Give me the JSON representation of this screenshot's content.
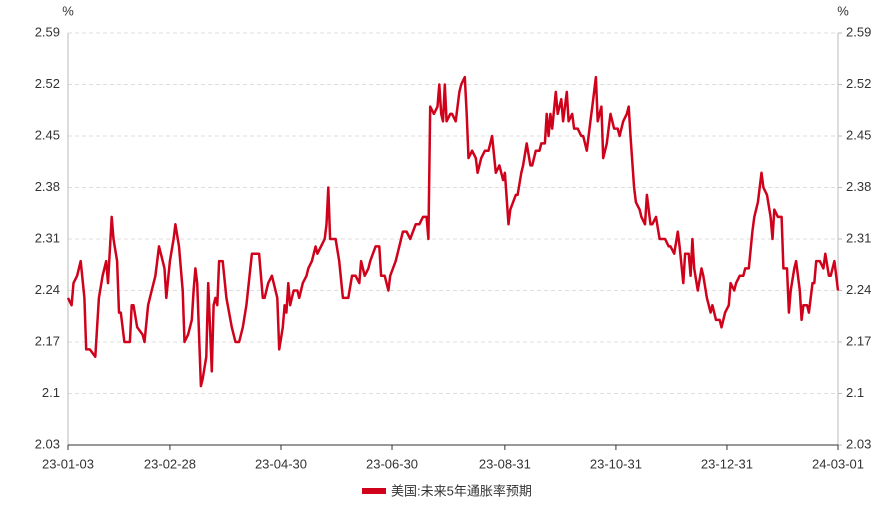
{
  "chart_data": {
    "type": "line",
    "ylabel": "%",
    "y2label": "%",
    "ylim": [
      2.03,
      2.59
    ],
    "yticks": [
      2.03,
      2.1,
      2.17,
      2.24,
      2.31,
      2.38,
      2.45,
      2.52,
      2.59
    ],
    "y2lim": [
      2.03,
      2.59
    ],
    "y2ticks": [
      2.03,
      2.1,
      2.17,
      2.24,
      2.31,
      2.38,
      2.45,
      2.52,
      2.59
    ],
    "xlim": [
      "23-01-03",
      "24-03-01"
    ],
    "xticks": [
      "23-01-03",
      "23-02-28",
      "23-04-30",
      "23-06-30",
      "23-08-31",
      "23-10-31",
      "23-12-31",
      "24-03-01"
    ],
    "grid": true,
    "legend": "bottom",
    "x": [
      "23-01-03",
      "23-01-05",
      "23-01-06",
      "23-01-08",
      "23-01-10",
      "23-01-12",
      "23-01-13",
      "23-01-15",
      "23-01-18",
      "23-01-20",
      "23-01-22",
      "23-01-24",
      "23-01-25",
      "23-01-27",
      "23-01-28",
      "23-01-30",
      "23-01-31",
      "23-02-01",
      "23-02-03",
      "23-02-06",
      "23-02-07",
      "23-02-08",
      "23-02-10",
      "23-02-13",
      "23-02-14",
      "23-02-16",
      "23-02-18",
      "23-02-20",
      "23-02-22",
      "23-02-24",
      "23-02-25",
      "23-02-26",
      "23-02-28",
      "23-03-02",
      "23-03-03",
      "23-03-05",
      "23-03-07",
      "23-03-08",
      "23-03-10",
      "23-03-12",
      "23-03-13",
      "23-03-14",
      "23-03-15",
      "23-03-17",
      "23-03-18",
      "23-03-20",
      "23-03-21",
      "23-03-23",
      "23-03-24",
      "23-03-25",
      "23-03-26",
      "23-03-27",
      "23-03-29",
      "23-03-31",
      "23-04-03",
      "23-04-05",
      "23-04-07",
      "23-04-09",
      "23-04-11",
      "23-04-14",
      "23-04-16",
      "23-04-18",
      "23-04-20",
      "23-04-21",
      "23-04-23",
      "23-04-25",
      "23-04-26",
      "23-04-28",
      "23-04-29",
      "23-05-01",
      "23-05-02",
      "23-05-03",
      "23-05-04",
      "23-05-05",
      "23-05-07",
      "23-05-09",
      "23-05-10",
      "23-05-12",
      "23-05-14",
      "23-05-15",
      "23-05-17",
      "23-05-19",
      "23-05-20",
      "23-05-22",
      "23-05-24",
      "23-05-25",
      "23-05-26",
      "23-05-27",
      "23-05-30",
      "23-06-01",
      "23-06-03",
      "23-06-05",
      "23-06-06",
      "23-06-08",
      "23-06-10",
      "23-06-12",
      "23-06-13",
      "23-06-15",
      "23-06-17",
      "23-06-18",
      "23-06-21",
      "23-06-23",
      "23-06-24",
      "23-06-26",
      "23-06-28",
      "23-06-29",
      "23-07-02",
      "23-07-04",
      "23-07-06",
      "23-07-08",
      "23-07-10",
      "23-07-13",
      "23-07-15",
      "23-07-17",
      "23-07-19",
      "23-07-20",
      "23-07-21",
      "23-07-23",
      "23-07-25",
      "23-07-26",
      "23-07-27",
      "23-07-28",
      "23-07-29",
      "23-07-30",
      "23-08-01",
      "23-08-02",
      "23-08-04",
      "23-08-06",
      "23-08-07",
      "23-08-09",
      "23-08-10",
      "23-08-11",
      "23-08-13",
      "23-08-15",
      "23-08-16",
      "23-08-18",
      "23-08-20",
      "23-08-22",
      "23-08-24",
      "23-08-26",
      "23-08-28",
      "23-08-30",
      "23-08-31",
      "23-09-02",
      "23-09-03",
      "23-09-06",
      "23-09-07",
      "23-09-09",
      "23-09-10",
      "23-09-12",
      "23-09-14",
      "23-09-15",
      "23-09-17",
      "23-09-19",
      "23-09-20",
      "23-09-22",
      "23-09-23",
      "23-09-24",
      "23-09-25",
      "23-09-26",
      "23-09-28",
      "23-09-29",
      "23-10-01",
      "23-10-02",
      "23-10-04",
      "23-10-05",
      "23-10-07",
      "23-10-08",
      "23-10-10",
      "23-10-12",
      "23-10-13",
      "23-10-15",
      "23-10-17",
      "23-10-18",
      "23-10-20",
      "23-10-21",
      "23-10-23",
      "23-10-24",
      "23-10-26",
      "23-10-27",
      "23-10-28",
      "23-10-30",
      "23-11-01",
      "23-11-02",
      "23-11-04",
      "23-11-06",
      "23-11-07",
      "23-11-08",
      "23-11-10",
      "23-11-11",
      "23-11-13",
      "23-11-14",
      "23-11-16",
      "23-11-17",
      "23-11-19",
      "23-11-20",
      "23-11-22",
      "23-11-24",
      "23-11-25",
      "23-11-27",
      "23-11-29",
      "23-11-30",
      "23-12-02",
      "23-12-04",
      "23-12-05",
      "23-12-07",
      "23-12-08",
      "23-12-10",
      "23-12-11",
      "23-12-12",
      "23-12-13",
      "23-12-15",
      "23-12-17",
      "23-12-18",
      "23-12-20",
      "23-12-22",
      "23-12-23",
      "23-12-25",
      "23-12-27",
      "23-12-28",
      "23-12-30",
      "24-01-01",
      "24-01-02",
      "24-01-04",
      "24-01-05",
      "24-01-07",
      "24-01-09",
      "24-01-10",
      "24-01-12",
      "24-01-14",
      "24-01-15",
      "24-01-17",
      "24-01-19",
      "24-01-20",
      "24-01-22",
      "24-01-24",
      "24-01-25",
      "24-01-26",
      "24-01-28",
      "24-01-30",
      "24-01-31",
      "24-02-02",
      "24-02-03",
      "24-02-04",
      "24-02-06",
      "24-02-07",
      "24-02-09",
      "24-02-10",
      "24-02-11",
      "24-02-13",
      "24-02-14",
      "24-02-16",
      "24-02-17",
      "24-02-18",
      "24-02-20",
      "24-02-22",
      "24-02-23",
      "24-02-25",
      "24-02-26",
      "24-02-28",
      "24-03-01"
    ],
    "series": [
      {
        "name": "美国:未来5年通胀率预期",
        "color": "#d0021b",
        "values": [
          2.23,
          2.22,
          2.25,
          2.26,
          2.28,
          2.23,
          2.16,
          2.16,
          2.15,
          2.23,
          2.26,
          2.28,
          2.25,
          2.34,
          2.31,
          2.28,
          2.21,
          2.21,
          2.17,
          2.17,
          2.22,
          2.22,
          2.19,
          2.18,
          2.17,
          2.22,
          2.24,
          2.26,
          2.3,
          2.28,
          2.27,
          2.23,
          2.28,
          2.31,
          2.33,
          2.3,
          2.24,
          2.17,
          2.18,
          2.2,
          2.24,
          2.27,
          2.25,
          2.11,
          2.12,
          2.15,
          2.25,
          2.13,
          2.22,
          2.23,
          2.22,
          2.28,
          2.28,
          2.23,
          2.19,
          2.17,
          2.17,
          2.19,
          2.22,
          2.29,
          2.29,
          2.29,
          2.23,
          2.23,
          2.25,
          2.26,
          2.25,
          2.23,
          2.16,
          2.19,
          2.22,
          2.21,
          2.25,
          2.22,
          2.24,
          2.24,
          2.23,
          2.25,
          2.26,
          2.27,
          2.28,
          2.3,
          2.29,
          2.3,
          2.31,
          2.33,
          2.38,
          2.31,
          2.31,
          2.28,
          2.23,
          2.23,
          2.23,
          2.26,
          2.26,
          2.25,
          2.28,
          2.26,
          2.27,
          2.28,
          2.3,
          2.3,
          2.26,
          2.26,
          2.24,
          2.26,
          2.28,
          2.3,
          2.32,
          2.32,
          2.31,
          2.33,
          2.33,
          2.34,
          2.34,
          2.31,
          2.49,
          2.48,
          2.49,
          2.52,
          2.48,
          2.47,
          2.52,
          2.47,
          2.48,
          2.48,
          2.47,
          2.51,
          2.52,
          2.53,
          2.48,
          2.42,
          2.43,
          2.42,
          2.4,
          2.42,
          2.43,
          2.43,
          2.45,
          2.4,
          2.41,
          2.39,
          2.4,
          2.33,
          2.35,
          2.37,
          2.37,
          2.4,
          2.41,
          2.44,
          2.41,
          2.41,
          2.43,
          2.43,
          2.44,
          2.44,
          2.48,
          2.45,
          2.48,
          2.46,
          2.51,
          2.48,
          2.5,
          2.47,
          2.51,
          2.47,
          2.48,
          2.46,
          2.46,
          2.45,
          2.45,
          2.43,
          2.47,
          2.49,
          2.53,
          2.47,
          2.49,
          2.42,
          2.44,
          2.46,
          2.48,
          2.46,
          2.46,
          2.45,
          2.47,
          2.48,
          2.49,
          2.45,
          2.38,
          2.36,
          2.35,
          2.34,
          2.33,
          2.37,
          2.33,
          2.33,
          2.34,
          2.31,
          2.31,
          2.31,
          2.3,
          2.3,
          2.29,
          2.32,
          2.3,
          2.25,
          2.29,
          2.29,
          2.26,
          2.31,
          2.27,
          2.24,
          2.27,
          2.26,
          2.23,
          2.21,
          2.22,
          2.2,
          2.2,
          2.19,
          2.21,
          2.22,
          2.25,
          2.24,
          2.25,
          2.26,
          2.26,
          2.27,
          2.27,
          2.32,
          2.34,
          2.36,
          2.4,
          2.38,
          2.37,
          2.34,
          2.31,
          2.35,
          2.34,
          2.34,
          2.27,
          2.27,
          2.21,
          2.24,
          2.27,
          2.28,
          2.24,
          2.2,
          2.22,
          2.22,
          2.21,
          2.25,
          2.25,
          2.28,
          2.28,
          2.27,
          2.29,
          2.26,
          2.26,
          2.28,
          2.24
        ]
      }
    ]
  }
}
